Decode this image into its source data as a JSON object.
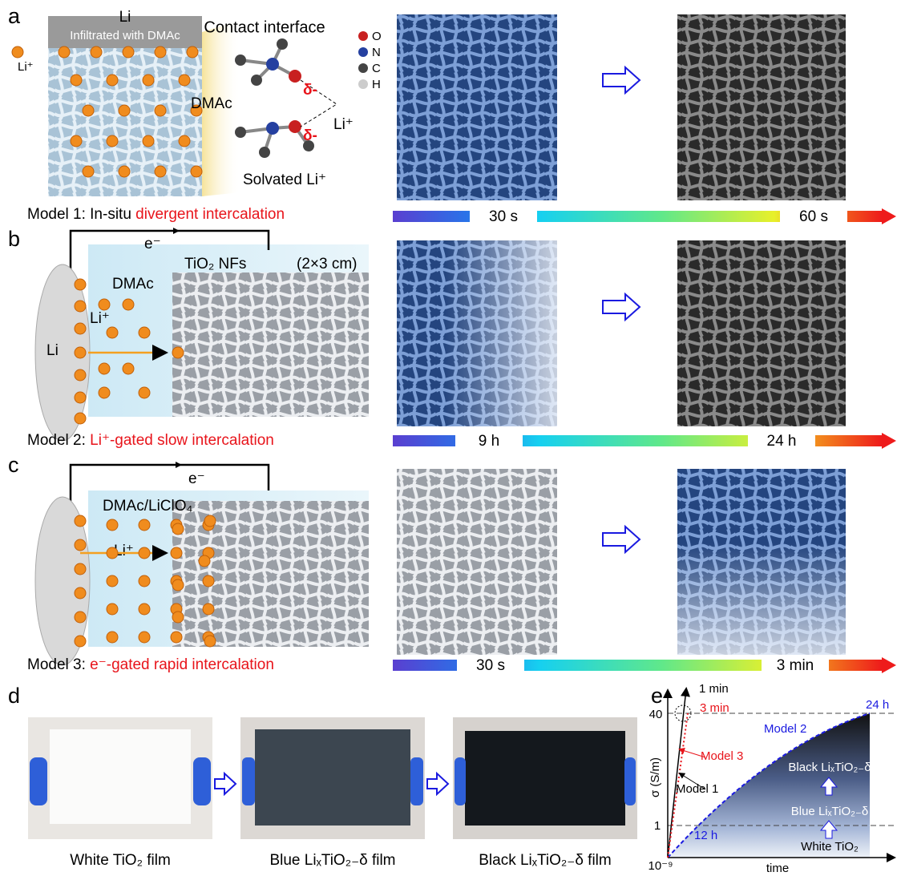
{
  "panel_a": {
    "label": "a",
    "li": "Li",
    "infiltrated": "Infiltrated with DMAc",
    "li_ion": "Li⁺",
    "contact_interface": "Contact interface",
    "dmac": "DMAc",
    "delta_top": "δ-",
    "delta_bottom": "δ-",
    "li_ion_bridge": "Li⁺",
    "solvated": "Solvated Li⁺",
    "atoms": [
      "O",
      "N",
      "C",
      "H"
    ],
    "caption": {
      "prefix": "Model 1: In-situ ",
      "highlight": "divergent intercalation"
    },
    "colorbar": [
      "30 s",
      "60 s"
    ]
  },
  "panel_b": {
    "label": "b",
    "electron": "e⁻",
    "nfs": "TiO₂ NFs",
    "size": "(2×3 cm)",
    "dmac": "DMAc",
    "li_ion": "Li⁺",
    "li": "Li",
    "caption": {
      "prefix": "Model 2: ",
      "highlight": "Li⁺-gated slow intercalation"
    },
    "colorbar": [
      "9 h",
      "24 h"
    ]
  },
  "panel_c": {
    "label": "c",
    "electron": "e⁻",
    "electrolyte": "DMAc/LiClO₄",
    "li_ion": "Li⁺",
    "caption": {
      "prefix": "Model 3: ",
      "highlight": "e⁻-gated rapid intercalation"
    },
    "colorbar": [
      "30 s",
      "3 min"
    ]
  },
  "panel_d": {
    "label": "d",
    "captions": [
      "White TiO₂ film",
      "Blue LiₓTiO₂₋δ film",
      "Black LiₓTiO₂₋δ film"
    ]
  },
  "panel_e": {
    "label": "e",
    "one_min": "1 min",
    "three_min": "3 min",
    "day": "24 h",
    "tick_top": "40",
    "tick_mid": "1",
    "tick_origin": "10⁻⁹",
    "model2": "Model 2",
    "model3": "Model 3",
    "model1": "Model 1",
    "black": "Black LiₓTiO₂₋δ",
    "blue": "Blue LiₓTiO₂₋δ",
    "half_day": "12 h",
    "white": "White TiO₂",
    "ylabel": "σ (S/m)",
    "xlabel": "time"
  }
}
